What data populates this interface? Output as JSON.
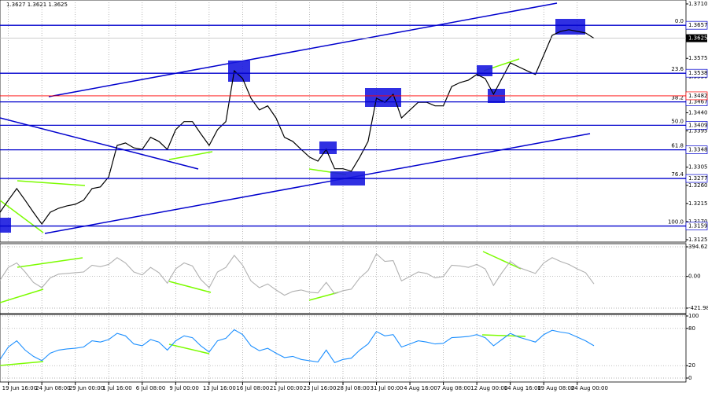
{
  "chart_data": [
    {
      "type": "line",
      "title": "1.3627 1.3621 1.3625",
      "color": "#000000",
      "x": [
        0,
        1,
        2,
        3,
        4,
        5,
        6,
        7,
        8,
        9,
        10,
        11,
        12,
        13,
        14,
        15,
        16,
        17,
        18,
        19,
        20,
        21,
        22,
        23,
        24,
        25,
        26,
        27,
        28,
        29,
        30,
        31,
        32,
        33,
        34,
        35,
        36,
        37,
        38,
        39,
        40,
        41,
        42,
        43,
        44,
        45,
        46,
        47,
        48,
        49,
        50,
        51,
        52,
        53,
        54,
        55,
        56,
        57,
        58,
        59,
        60,
        61,
        62,
        63,
        64,
        65,
        66,
        67,
        68,
        69,
        70,
        71
      ],
      "values": [
        1.3193,
        1.3223,
        1.3252,
        1.3223,
        1.3193,
        1.3164,
        1.3193,
        1.3203,
        1.3209,
        1.3213,
        1.3223,
        1.3252,
        1.3256,
        1.3281,
        1.3359,
        1.3365,
        1.3353,
        1.3349,
        1.3379,
        1.3369,
        1.3349,
        1.3398,
        1.3418,
        1.3418,
        1.3388,
        1.3359,
        1.3398,
        1.3418,
        1.3544,
        1.3525,
        1.3476,
        1.3447,
        1.3457,
        1.3427,
        1.3379,
        1.3369,
        1.3349,
        1.333,
        1.332,
        1.3349,
        1.3301,
        1.3301,
        1.3295,
        1.333,
        1.3369,
        1.3476,
        1.3466,
        1.3486,
        1.3427,
        1.3447,
        1.3466,
        1.3466,
        1.3457,
        1.3457,
        1.3505,
        1.3515,
        1.3521,
        1.3535,
        1.3525,
        1.3486,
        1.3525,
        1.3564,
        1.3554,
        1.3544,
        1.3535,
        1.3583,
        1.3632,
        1.3642,
        1.3646,
        1.3642,
        1.3638,
        1.3625
      ],
      "xlim": [
        0,
        82
      ],
      "ylim": [
        1.3125,
        1.371
      ],
      "yticks": [
        {
          "value": 1.371,
          "label": "1.3710"
        },
        1.3575,
        {
          "value": 1.353,
          "label": "1.3530"
        },
        {
          "value": 1.344,
          "label": "1.3440"
        },
        1.3395,
        1.3305,
        {
          "value": 1.326,
          "label": "1.3260"
        },
        1.3215,
        {
          "value": 1.317,
          "label": "1.3170"
        },
        1.3125
      ],
      "levels": [
        {
          "label": "0.0",
          "value": 1.3657
        },
        {
          "label": "23.6",
          "value": 1.3538
        },
        {
          "label": "38.2",
          "value": 1.3467
        },
        {
          "label": "50.0",
          "value": 1.3409
        },
        {
          "label": "61.8",
          "value": 1.3348
        },
        {
          "label": "76.4",
          "value": 1.3277
        },
        {
          "label": "100.0",
          "value": 1.3159
        }
      ],
      "level_color": "#0000cd",
      "ref_line": 1.3482,
      "ref_color": "#ff0000",
      "last_price": 1.3625
    },
    {
      "type": "line",
      "color": "#b0b0b0",
      "values": [
        -50,
        120,
        180,
        60,
        -80,
        -150,
        -20,
        30,
        40,
        50,
        60,
        150,
        130,
        160,
        250,
        180,
        60,
        20,
        120,
        50,
        -90,
        100,
        180,
        140,
        -40,
        -150,
        60,
        120,
        280,
        150,
        -60,
        -150,
        -100,
        -180,
        -250,
        -200,
        -180,
        -210,
        -220,
        -80,
        -230,
        -190,
        -170,
        -20,
        80,
        300,
        200,
        210,
        -60,
        0,
        60,
        40,
        -20,
        0,
        150,
        140,
        120,
        160,
        100,
        -120,
        50,
        200,
        120,
        80,
        40,
        180,
        250,
        200,
        160,
        100,
        50,
        -100
      ],
      "ylim": [
        -421.987,
        394.6289
      ],
      "yticks": [
        394.6289,
        {
          "value": 0,
          "label": "0.00"
        },
        -421.987
      ]
    },
    {
      "type": "line",
      "color": "#1e90ff",
      "values": [
        30,
        50,
        60,
        45,
        35,
        28,
        40,
        45,
        47,
        48,
        50,
        60,
        58,
        62,
        72,
        68,
        55,
        52,
        62,
        58,
        45,
        60,
        68,
        65,
        52,
        42,
        60,
        64,
        78,
        70,
        52,
        44,
        48,
        40,
        33,
        35,
        30,
        28,
        26,
        45,
        25,
        30,
        32,
        45,
        55,
        75,
        68,
        70,
        50,
        55,
        60,
        58,
        55,
        56,
        65,
        66,
        67,
        70,
        65,
        52,
        62,
        72,
        66,
        62,
        58,
        70,
        77,
        74,
        72,
        66,
        60,
        52
      ],
      "ylim": [
        0,
        100
      ],
      "yticks": [
        100,
        80,
        20,
        0
      ],
      "xticks": [
        {
          "value": 1,
          "label": "19 Jun 16:00"
        },
        {
          "value": 5,
          "label": "24 Jun 08:00"
        },
        {
          "value": 9,
          "label": "29 Jun 00:00"
        },
        {
          "value": 13,
          "label": "1 Jul 16:00"
        },
        {
          "value": 17,
          "label": "6 Jul 08:00"
        },
        {
          "value": 21,
          "label": "9 Jul 00:00"
        },
        {
          "value": 25,
          "label": "13 Jul 16:00"
        },
        {
          "value": 29,
          "label": "16 Jul 08:00"
        },
        {
          "value": 33,
          "label": "21 Jul 00:00"
        },
        {
          "value": 37,
          "label": "23 Jul 16:00"
        },
        {
          "value": 41,
          "label": "28 Jul 08:00"
        },
        {
          "value": 45,
          "label": "31 Jul 00:00"
        },
        {
          "value": 49,
          "label": "4 Aug 16:00"
        },
        {
          "value": 53,
          "label": "7 Aug 08:00"
        },
        {
          "value": 57,
          "label": "12 Aug 00:00"
        },
        {
          "value": 61,
          "label": "14 Aug 16:00"
        },
        {
          "value": 65,
          "label": "19 Aug 08:00"
        },
        {
          "value": 69,
          "label": "24 Aug 00:00"
        }
      ]
    }
  ]
}
